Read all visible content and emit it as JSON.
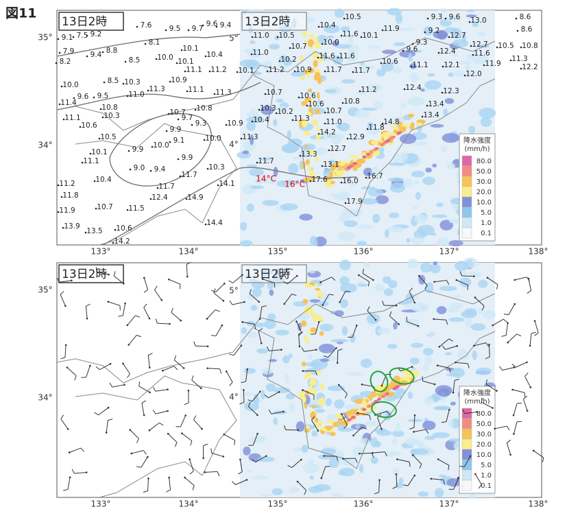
{
  "figure_label": "図11",
  "panels": [
    {
      "time_label": "13日2時",
      "radar_time_label": "13日2時",
      "x_labels": [
        "133°",
        "134°",
        "135°",
        "136°",
        "137°",
        "138°"
      ],
      "y_labels": [
        "35°",
        "34°"
      ],
      "radar_lat_labels": [
        "5°",
        "4°"
      ],
      "stations": [
        "7.6",
        "9.5",
        "9.7",
        "9.6",
        "9.4",
        "9.1",
        "7.5",
        "9.2",
        "7.9",
        "9.4",
        "8.8",
        "8.1",
        "8.2",
        "8.5",
        "10.0",
        "10.1",
        "10.4",
        "10.1",
        "11.1",
        "11.2",
        "10.0",
        "8.5",
        "10.3",
        "10.9",
        "9.6",
        "9.5",
        "11.0",
        "11.3",
        "11.1",
        "11.3",
        "11.4",
        "10.8",
        "10.8",
        "11.1",
        "10.3",
        "10.7",
        "9.7",
        "10.6",
        "9.9",
        "9.3",
        "10.9",
        "10.5",
        "9.1",
        "10.0",
        "10.1",
        "9.9",
        "10.0",
        "11.1",
        "9.9",
        "9.0",
        "9.4",
        "10.3",
        "10.4",
        "11.7",
        "11.2",
        "11.7",
        "14.1",
        "11.8",
        "12.4",
        "14.9",
        "11.9",
        "10.7",
        "11.5",
        "13.9",
        "13.5",
        "10.6",
        "14.4",
        "14.2",
        "10.5",
        "9.3",
        "9.6",
        "13.0",
        "8.6",
        "10.4",
        "11.6",
        "10.1",
        "11.9",
        "9.2",
        "12.7",
        "8.6",
        "11.0",
        "10.5",
        "10.7",
        "10.0",
        "9.6",
        "9.3",
        "12.4",
        "12.7",
        "10.5",
        "10.8",
        "11.0",
        "10.2",
        "11.6",
        "11.6",
        "10.6",
        "11.1",
        "12.1",
        "11.6",
        "11.9",
        "11.3",
        "12.2",
        "10.1",
        "11.2",
        "10.9",
        "11.7",
        "11.7",
        "12.0",
        "12.4",
        "12.3",
        "10.7",
        "10.6",
        "11.2",
        "10.6",
        "10.8",
        "13.4",
        "10.3",
        "10.2",
        "10.7",
        "13.4",
        "10.4",
        "11.3",
        "11.0",
        "11.8",
        "14.8",
        "11.3",
        "14.2",
        "12.9",
        "12.7",
        "13.3",
        "11.7",
        "13.1",
        "17.6",
        "16.0",
        "16.7",
        "17.9"
      ],
      "annotations": [
        "14°C",
        "16°C"
      ],
      "legend": {
        "title": "降水強度",
        "unit": "(mm/h)",
        "levels": [
          "80.0",
          "50.0",
          "30.0",
          "20.0",
          "10.0",
          "5.0",
          "1.0",
          "0.1"
        ]
      }
    },
    {
      "time_label": "13日2時",
      "radar_time_label": "13日2時",
      "x_labels": [
        "133°",
        "134°",
        "135°",
        "136°",
        "137°",
        "138°"
      ],
      "y_labels": [
        "35°",
        "34°"
      ],
      "radar_lat_labels": [
        "5°",
        "4°"
      ],
      "legend": {
        "title": "降水強度",
        "unit": "(mm/h)",
        "levels": [
          "80.0",
          "50.0",
          "30.0",
          "20.0",
          "10.0",
          "5.0",
          "1.0",
          "0.1"
        ]
      }
    }
  ]
}
